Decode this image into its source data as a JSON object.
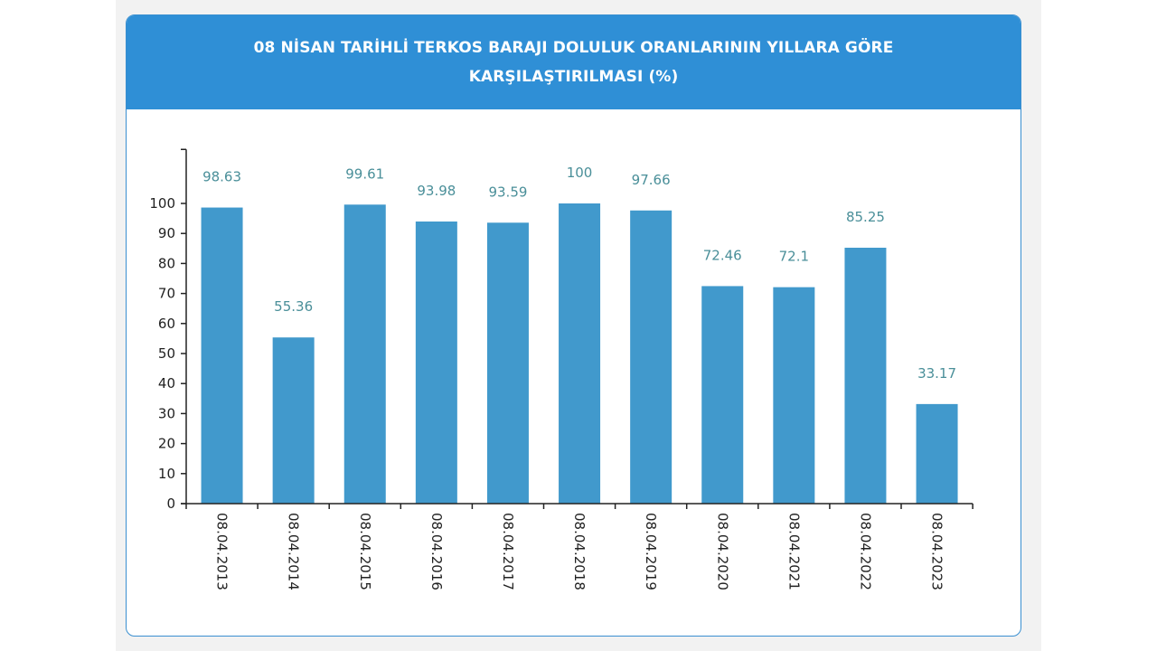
{
  "header": {
    "title_line1": "08 NİSAN TARİHLİ TERKOS BARAJI DOLULUK ORANLARININ YILLARA GÖRE",
    "title_line2": "KARŞILAŞTIRILMASI (%)"
  },
  "colors": {
    "header_bg": "#2f8fd6",
    "bar": "#4199cc",
    "data_label": "#4a8f99",
    "axis": "#222222"
  },
  "chart_data": {
    "type": "bar",
    "title": "08 NİSAN TARİHLİ TERKOS BARAJI DOLULUK ORANLARININ YILLARA GÖRE KARŞILAŞTIRILMASI (%)",
    "categories": [
      "08.04.2013",
      "08.04.2014",
      "08.04.2015",
      "08.04.2016",
      "08.04.2017",
      "08.04.2018",
      "08.04.2019",
      "08.04.2020",
      "08.04.2021",
      "08.04.2022",
      "08.04.2023"
    ],
    "values": [
      98.63,
      55.36,
      99.61,
      93.98,
      93.59,
      100,
      97.66,
      72.46,
      72.1,
      85.25,
      33.17
    ],
    "data_labels": [
      "98.63",
      "55.36",
      "99.61",
      "93.98",
      "93.59",
      "100",
      "97.66",
      "72.46",
      "72.1",
      "85.25",
      "33.17"
    ],
    "yticks": [
      0,
      10,
      20,
      30,
      40,
      50,
      60,
      70,
      80,
      90,
      100
    ],
    "ylim": [
      0,
      118
    ],
    "xlabel": "",
    "ylabel": "",
    "grid": false,
    "legend": "none"
  }
}
